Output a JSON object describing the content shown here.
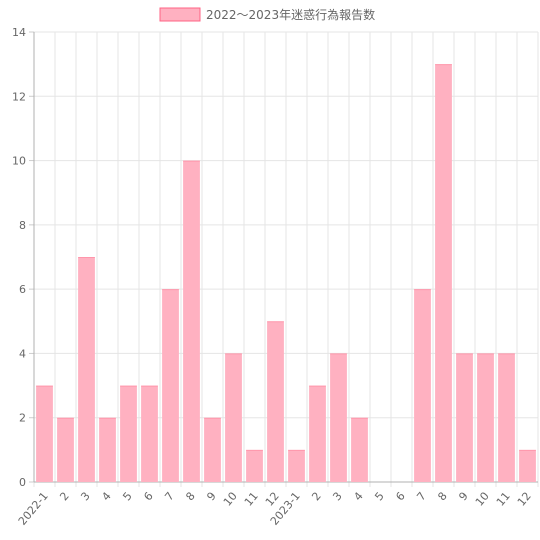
{
  "chart_data": {
    "type": "bar",
    "legend_position": "top-center",
    "grid": true,
    "series": [
      {
        "name": "2022～2023年迷惑行為報告数",
        "values": [
          3,
          2,
          7,
          2,
          3,
          3,
          6,
          10,
          2,
          4,
          1,
          5,
          1,
          3,
          4,
          2,
          0,
          0,
          6,
          13,
          4,
          4,
          4,
          1
        ],
        "fill_color": "#ffb1c1",
        "border_color": "#ff6384"
      }
    ],
    "categories": [
      "2022-1",
      "2",
      "3",
      "4",
      "5",
      "6",
      "7",
      "8",
      "9",
      "10",
      "11",
      "12",
      "2023-1",
      "2",
      "3",
      "4",
      "5",
      "6",
      "7",
      "8",
      "9",
      "10",
      "11",
      "12"
    ],
    "ylim": [
      0,
      14
    ],
    "yticks": [
      0,
      2,
      4,
      6,
      8,
      10,
      12,
      14
    ]
  }
}
